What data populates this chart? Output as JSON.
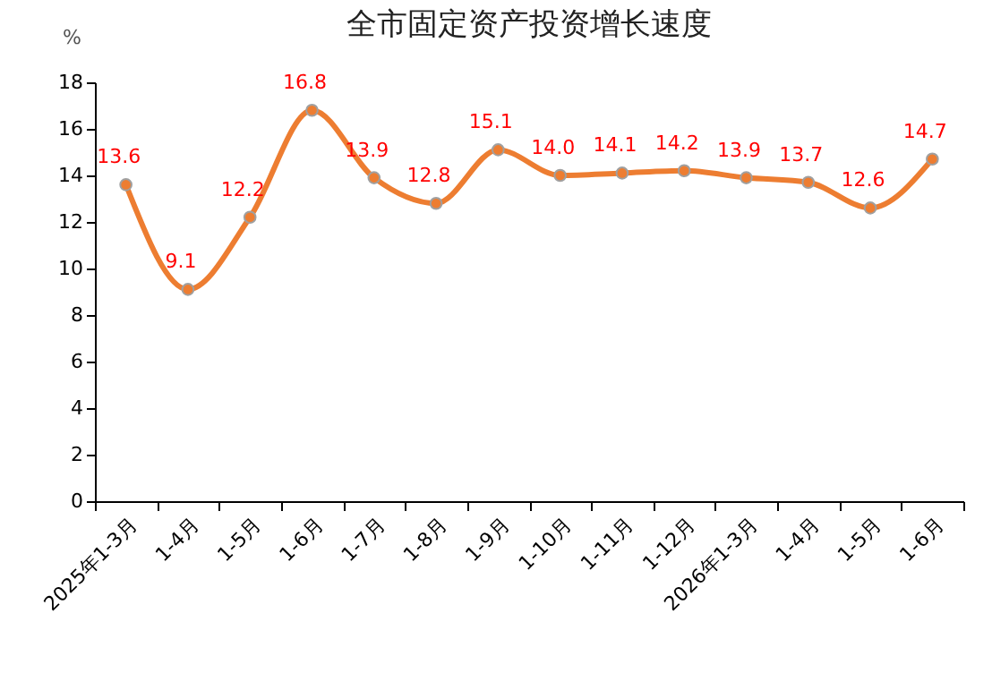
{
  "chart_data": {
    "type": "line",
    "title": "全市固定资产投资增长速度",
    "ylabel": "%",
    "categories": [
      "2025年1-3月",
      "1-4月",
      "1-5月",
      "1-6月",
      "1-7月",
      "1-8月",
      "1-9月",
      "1-10月",
      "1-11月",
      "1-12月",
      "2026年1-3月",
      "1-4月",
      "1-5月",
      "1-6月"
    ],
    "series": [
      {
        "color": "#ed7d31",
        "values": [
          13.6,
          9.1,
          12.2,
          16.8,
          13.9,
          12.8,
          15.1,
          14.0,
          14.1,
          14.2,
          13.9,
          13.7,
          12.6,
          14.7
        ],
        "value_labels": [
          "13.6",
          "9.1",
          "12.2",
          "16.8",
          "13.9",
          "12.8",
          "15.1",
          "14.0",
          "14.1",
          "14.2",
          "13.9",
          "13.7",
          "12.6",
          "14.7"
        ]
      }
    ],
    "ylim": [
      0,
      18
    ],
    "yticks": [
      0,
      2,
      4,
      6,
      8,
      10,
      12,
      14,
      16,
      18
    ],
    "grid": false,
    "marker": "circle",
    "line_style": "solid"
  }
}
